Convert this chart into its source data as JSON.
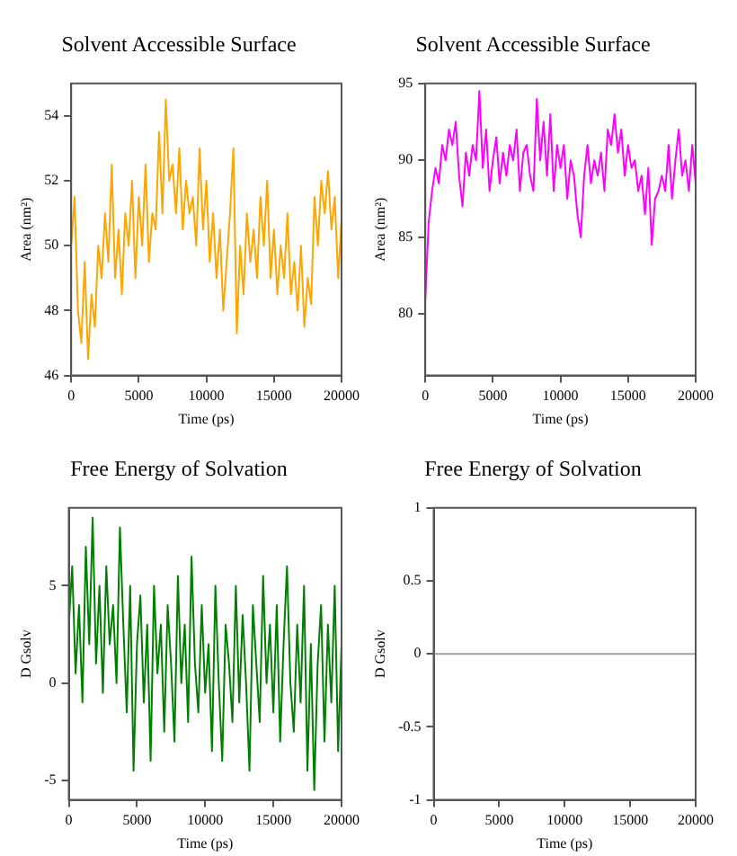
{
  "chart_data": [
    {
      "type": "line",
      "title": "Solvent Accessible Surface",
      "xlabel": "Time (ps)",
      "ylabel": "Area (nm²)",
      "xlim": [
        0,
        20000
      ],
      "xticks": [
        0,
        5000,
        10000,
        15000,
        20000
      ],
      "ylim": [
        46,
        55
      ],
      "yticks": [
        46,
        48,
        50,
        52,
        54
      ],
      "legend": false,
      "grid": false,
      "marker": "none",
      "x": [
        0,
        250,
        500,
        750,
        1000,
        1250,
        1500,
        1750,
        2000,
        2250,
        2500,
        2750,
        3000,
        3250,
        3500,
        3750,
        4000,
        4250,
        4500,
        4750,
        5000,
        5250,
        5500,
        5750,
        6000,
        6250,
        6500,
        6750,
        7000,
        7250,
        7500,
        7750,
        8000,
        8250,
        8500,
        8750,
        9000,
        9250,
        9500,
        9750,
        10000,
        10250,
        10500,
        10750,
        11000,
        11250,
        11500,
        11750,
        12000,
        12250,
        12500,
        12750,
        13000,
        13250,
        13500,
        13750,
        14000,
        14250,
        14500,
        14750,
        15000,
        15250,
        15500,
        15750,
        16000,
        16250,
        16500,
        16750,
        17000,
        17250,
        17500,
        17750,
        18000,
        18250,
        18500,
        18750,
        19000,
        19250,
        19500,
        19750,
        20000
      ],
      "series": [
        {
          "color": "#ffa500",
          "values": [
            50,
            51.5,
            48,
            47,
            49.5,
            46.5,
            48.5,
            47.5,
            50,
            49,
            51,
            49.5,
            52.5,
            49,
            50.5,
            48.5,
            51,
            50,
            52,
            49,
            51.5,
            50,
            52.5,
            49.5,
            51,
            50.5,
            53.5,
            51,
            54.5,
            52,
            52.5,
            51,
            53,
            50.5,
            52,
            51,
            51.5,
            50,
            53,
            50.5,
            52,
            49.5,
            51,
            49,
            50.5,
            48,
            49.5,
            51,
            53,
            47.3,
            50,
            48.5,
            51,
            49.5,
            50.5,
            49,
            51.5,
            50,
            52,
            49,
            50.5,
            48.5,
            50,
            49,
            51,
            48.5,
            49.5,
            48,
            50,
            47.5,
            49,
            48.2,
            51.5,
            50,
            52,
            51,
            52.3,
            50.5,
            51.5,
            49,
            50.8
          ]
        }
      ]
    },
    {
      "type": "line",
      "title": "Solvent Accessible Surface",
      "xlabel": "Time (ps)",
      "ylabel": "Area (nm²)",
      "xlim": [
        0,
        20000
      ],
      "xticks": [
        0,
        5000,
        10000,
        15000,
        20000
      ],
      "ylim": [
        76,
        95
      ],
      "yticks": [
        80,
        85,
        90,
        95
      ],
      "legend": false,
      "grid": false,
      "marker": "none",
      "x": [
        0,
        250,
        500,
        750,
        1000,
        1250,
        1500,
        1750,
        2000,
        2250,
        2500,
        2750,
        3000,
        3250,
        3500,
        3750,
        4000,
        4250,
        4500,
        4750,
        5000,
        5250,
        5500,
        5750,
        6000,
        6250,
        6500,
        6750,
        7000,
        7250,
        7500,
        7750,
        8000,
        8250,
        8500,
        8750,
        9000,
        9250,
        9500,
        9750,
        10000,
        10250,
        10500,
        10750,
        11000,
        11250,
        11500,
        11750,
        12000,
        12250,
        12500,
        12750,
        13000,
        13250,
        13500,
        13750,
        14000,
        14250,
        14500,
        14750,
        15000,
        15250,
        15500,
        15750,
        16000,
        16250,
        16500,
        16750,
        17000,
        17250,
        17500,
        17750,
        18000,
        18250,
        18500,
        18750,
        19000,
        19250,
        19500,
        19750,
        20000
      ],
      "series": [
        {
          "color": "#ff00ff",
          "values": [
            81,
            86,
            88,
            89.5,
            88.5,
            91,
            90,
            92,
            91,
            92.5,
            89,
            87,
            90.5,
            89,
            91,
            90,
            94.5,
            89.5,
            92,
            88,
            90,
            91.5,
            88.5,
            90.5,
            89,
            91,
            90,
            92,
            88,
            90.5,
            91,
            89,
            88,
            94,
            90,
            92.5,
            89,
            93,
            88,
            91,
            89.5,
            91,
            87.5,
            90,
            89,
            86.5,
            85,
            89,
            91,
            88.5,
            90,
            89,
            90.5,
            88,
            92,
            91,
            93,
            90.5,
            92,
            89,
            91,
            89.5,
            90,
            88,
            89,
            86.5,
            89.5,
            84.5,
            87.5,
            88,
            89,
            88,
            91,
            87.5,
            90,
            92,
            89,
            90,
            88,
            91,
            88.5
          ]
        }
      ]
    },
    {
      "type": "line",
      "title": "Free Energy of Solvation",
      "xlabel": "Time (ps)",
      "ylabel": "D Gsolv",
      "xlim": [
        0,
        20000
      ],
      "xticks": [
        0,
        5000,
        10000,
        15000,
        20000
      ],
      "ylim": [
        -6,
        9
      ],
      "yticks": [
        -5,
        0,
        5
      ],
      "legend": false,
      "grid": false,
      "marker": "none",
      "x": [
        0,
        250,
        500,
        750,
        1000,
        1250,
        1500,
        1750,
        2000,
        2250,
        2500,
        2750,
        3000,
        3250,
        3500,
        3750,
        4000,
        4250,
        4500,
        4750,
        5000,
        5250,
        5500,
        5750,
        6000,
        6250,
        6500,
        6750,
        7000,
        7250,
        7500,
        7750,
        8000,
        8250,
        8500,
        8750,
        9000,
        9250,
        9500,
        9750,
        10000,
        10250,
        10500,
        10750,
        11000,
        11250,
        11500,
        11750,
        12000,
        12250,
        12500,
        12750,
        13000,
        13250,
        13500,
        13750,
        14000,
        14250,
        14500,
        14750,
        15000,
        15250,
        15500,
        15750,
        16000,
        16250,
        16500,
        16750,
        17000,
        17250,
        17500,
        17750,
        18000,
        18250,
        18500,
        18750,
        19000,
        19250,
        19500,
        19750,
        20000
      ],
      "series": [
        {
          "color": "#008000",
          "values": [
            3,
            6,
            0.5,
            4,
            -1,
            7,
            2,
            8.5,
            1,
            5,
            -0.5,
            6,
            2,
            4,
            0,
            8,
            3,
            -1.5,
            5,
            -4.5,
            2,
            4.5,
            -1,
            3,
            -4,
            5,
            0.5,
            3,
            -2.5,
            4,
            1,
            -3,
            5.5,
            0,
            3,
            -2,
            6.5,
            1,
            -1.5,
            4,
            -0.5,
            2,
            -3.5,
            5,
            0,
            -4,
            3,
            1,
            -2,
            5,
            -1,
            3.5,
            0,
            -4.5,
            4,
            1,
            -2,
            5.5,
            0,
            3,
            -1.5,
            4,
            -3,
            2,
            6,
            0,
            -2.5,
            3,
            -1,
            5,
            -4.5,
            2,
            -5.5,
            1,
            4,
            -3,
            3,
            -1,
            5,
            -3.5,
            2
          ]
        }
      ]
    },
    {
      "type": "line",
      "title": "Free Energy of Solvation",
      "xlabel": "Time (ps)",
      "ylabel": "D Gsolv",
      "xlim": [
        0,
        20000
      ],
      "xticks": [
        0,
        5000,
        10000,
        15000,
        20000
      ],
      "ylim": [
        -1,
        1
      ],
      "yticks": [
        -1,
        -0.5,
        0,
        0.5,
        1
      ],
      "legend": false,
      "grid": false,
      "marker": "none",
      "x": [
        0,
        20000
      ],
      "series": [
        {
          "color": "#a0a0a0",
          "values": [
            0,
            0
          ]
        }
      ]
    }
  ]
}
